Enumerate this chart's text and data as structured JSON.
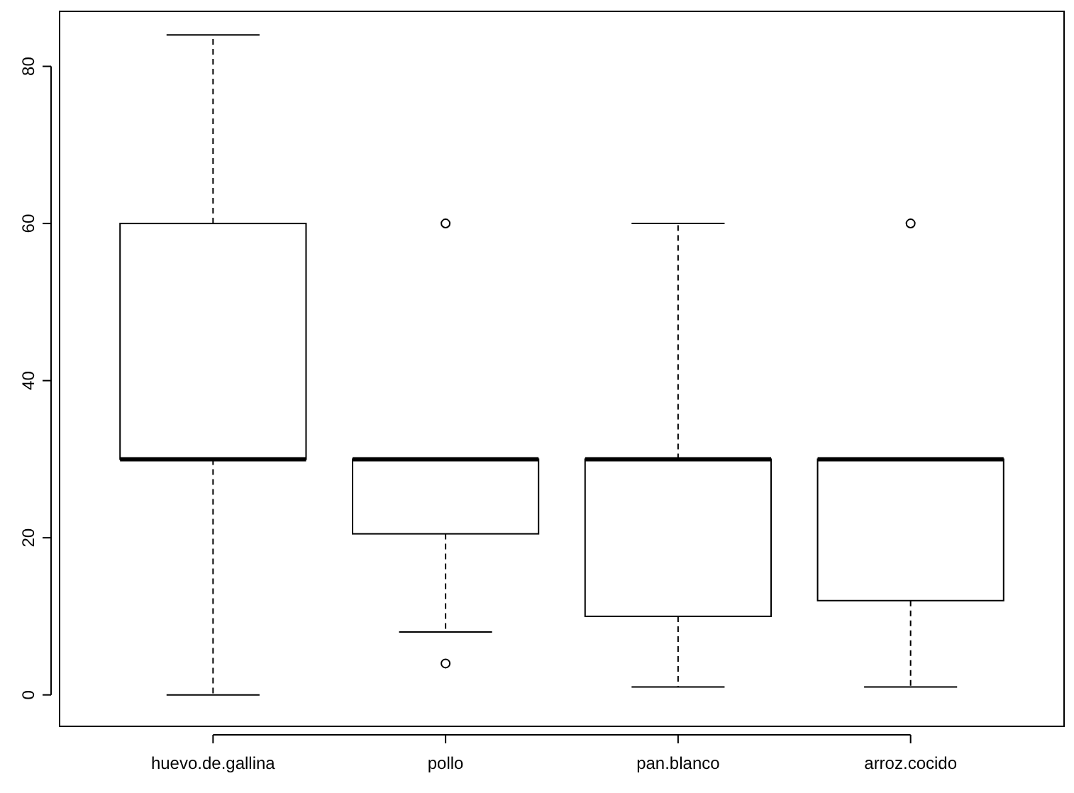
{
  "chart_data": {
    "type": "box",
    "categories": [
      "huevo.de.gallina",
      "pollo",
      "pan.blanco",
      "arroz.cocido"
    ],
    "boxes": [
      {
        "low": 0,
        "q1": 30,
        "median": 30,
        "q3": 60,
        "high": 84
      },
      {
        "low": 8,
        "q1": 20.5,
        "median": 30,
        "q3": 30,
        "high": 30,
        "outliers": [
          60,
          4
        ]
      },
      {
        "low": 1,
        "q1": 10,
        "median": 30,
        "q3": 30,
        "high": 60
      },
      {
        "low": 1,
        "q1": 12,
        "median": 30,
        "q3": 30,
        "high": 30,
        "outliers": [
          60
        ]
      }
    ],
    "color": "#ffffff",
    "ylim": [
      -4,
      87
    ],
    "yticks": [
      0,
      20,
      40,
      60,
      80
    ],
    "grid": false
  }
}
